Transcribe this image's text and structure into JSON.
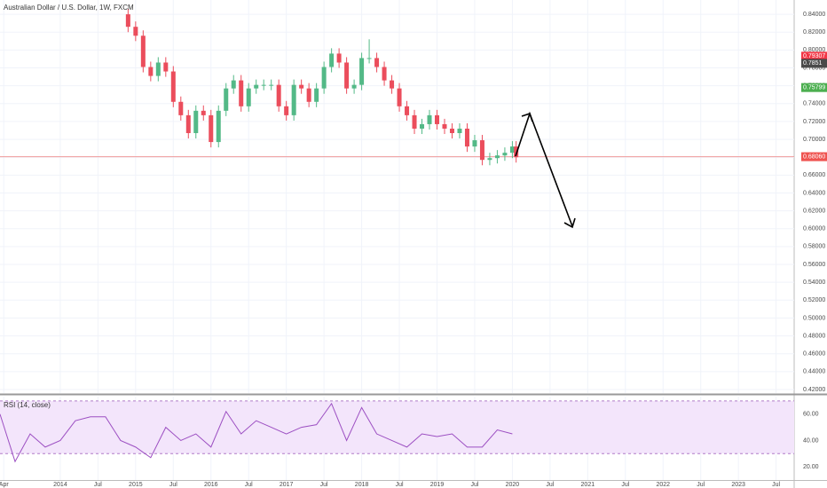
{
  "chart_data": [
    {
      "type": "candlestick",
      "title": "Australian Dollar / U.S. Dollar, 1W, FXCM",
      "x": [
        2014.9,
        2015.0,
        2015.1,
        2015.2,
        2015.3,
        2015.4,
        2015.5,
        2015.6,
        2015.7,
        2015.8,
        2015.9,
        2016.0,
        2016.1,
        2016.2,
        2016.3,
        2016.4,
        2016.5,
        2016.6,
        2016.7,
        2016.8,
        2016.9,
        2017.0,
        2017.1,
        2017.2,
        2017.3,
        2017.4,
        2017.5,
        2017.6,
        2017.7,
        2017.8,
        2017.9,
        2018.0,
        2018.1,
        2018.2,
        2018.3,
        2018.4,
        2018.5,
        2018.6,
        2018.7,
        2018.8,
        2018.9,
        2019.0,
        2019.1,
        2019.2,
        2019.3,
        2019.4,
        2019.5,
        2019.6,
        2019.7,
        2019.8,
        2019.9,
        2020.0,
        2020.05
      ],
      "open": [
        0.84,
        0.826,
        0.816,
        0.781,
        0.771,
        0.786,
        0.776,
        0.742,
        0.727,
        0.707,
        0.732,
        0.727,
        0.697,
        0.732,
        0.757,
        0.766,
        0.737,
        0.757,
        0.761,
        0.761,
        0.761,
        0.737,
        0.727,
        0.761,
        0.757,
        0.742,
        0.757,
        0.781,
        0.796,
        0.786,
        0.757,
        0.761,
        0.791,
        0.791,
        0.781,
        0.766,
        0.757,
        0.737,
        0.727,
        0.712,
        0.717,
        0.727,
        0.717,
        0.712,
        0.707,
        0.712,
        0.692,
        0.699,
        0.677,
        0.679,
        0.682,
        0.685,
        0.692
      ],
      "high": [
        0.846,
        0.832,
        0.822,
        0.787,
        0.792,
        0.792,
        0.782,
        0.748,
        0.733,
        0.738,
        0.738,
        0.733,
        0.738,
        0.763,
        0.772,
        0.772,
        0.763,
        0.767,
        0.767,
        0.767,
        0.767,
        0.743,
        0.767,
        0.767,
        0.763,
        0.763,
        0.787,
        0.802,
        0.802,
        0.792,
        0.767,
        0.797,
        0.812,
        0.797,
        0.787,
        0.772,
        0.763,
        0.743,
        0.733,
        0.723,
        0.733,
        0.733,
        0.723,
        0.718,
        0.718,
        0.718,
        0.705,
        0.705,
        0.685,
        0.688,
        0.691,
        0.698,
        0.698
      ],
      "low": [
        0.82,
        0.81,
        0.775,
        0.765,
        0.765,
        0.77,
        0.736,
        0.721,
        0.701,
        0.701,
        0.721,
        0.691,
        0.691,
        0.726,
        0.751,
        0.731,
        0.731,
        0.751,
        0.755,
        0.755,
        0.731,
        0.721,
        0.721,
        0.751,
        0.736,
        0.736,
        0.751,
        0.775,
        0.78,
        0.751,
        0.751,
        0.755,
        0.785,
        0.775,
        0.76,
        0.751,
        0.731,
        0.721,
        0.706,
        0.706,
        0.711,
        0.711,
        0.706,
        0.701,
        0.701,
        0.686,
        0.686,
        0.671,
        0.671,
        0.673,
        0.676,
        0.679,
        0.674
      ],
      "close": [
        0.826,
        0.816,
        0.781,
        0.771,
        0.786,
        0.776,
        0.742,
        0.727,
        0.707,
        0.732,
        0.727,
        0.697,
        0.732,
        0.757,
        0.766,
        0.737,
        0.757,
        0.761,
        0.761,
        0.761,
        0.737,
        0.727,
        0.761,
        0.757,
        0.742,
        0.757,
        0.781,
        0.796,
        0.786,
        0.757,
        0.761,
        0.791,
        0.791,
        0.781,
        0.766,
        0.757,
        0.737,
        0.727,
        0.712,
        0.717,
        0.727,
        0.717,
        0.712,
        0.707,
        0.712,
        0.692,
        0.699,
        0.677,
        0.679,
        0.682,
        0.685,
        0.692,
        0.68
      ],
      "up_color": "#53b987",
      "down_color": "#eb4d5c",
      "xlim": [
        2013.2,
        2023.74
      ],
      "xticks": [
        {
          "value": 2013.25,
          "label": "Apr"
        },
        2014,
        {
          "value": 2014.5,
          "label": "Jul"
        },
        2015,
        {
          "value": 2015.5,
          "label": "Jul"
        },
        2016,
        {
          "value": 2016.5,
          "label": "Jul"
        },
        2017,
        {
          "value": 2017.5,
          "label": "Jul"
        },
        2018,
        {
          "value": 2018.5,
          "label": "Jul"
        },
        2019,
        {
          "value": 2019.5,
          "label": "Jul"
        },
        2020,
        {
          "value": 2020.5,
          "label": "Jul"
        },
        2021,
        {
          "value": 2021.5,
          "label": "Jul"
        },
        2022,
        {
          "value": 2022.5,
          "label": "Jul"
        },
        2023,
        {
          "value": 2023.5,
          "label": "Jul"
        }
      ],
      "ylim": [
        0.416,
        0.856
      ],
      "yticks": [
        {
          "value": 0.42,
          "label": "0.42000"
        },
        {
          "value": 0.44,
          "label": "0.44000"
        },
        {
          "value": 0.46,
          "label": "0.46000"
        },
        {
          "value": 0.48,
          "label": "0.48000"
        },
        {
          "value": 0.5,
          "label": "0.50000"
        },
        {
          "value": 0.52,
          "label": "0.52000"
        },
        {
          "value": 0.54,
          "label": "0.54000"
        },
        {
          "value": 0.56,
          "label": "0.56000"
        },
        {
          "value": 0.58,
          "label": "0.58000"
        },
        {
          "value": 0.6,
          "label": "0.60000"
        },
        {
          "value": 0.62,
          "label": "0.62000"
        },
        {
          "value": 0.64,
          "label": "0.64000"
        },
        {
          "value": 0.66,
          "label": "0.66000"
        },
        {
          "value": 0.68,
          "label": "0.68000"
        },
        {
          "value": 0.7,
          "label": "0.70000"
        },
        {
          "value": 0.72,
          "label": "0.72000"
        },
        {
          "value": 0.74,
          "label": "0.74000"
        },
        {
          "value": 0.76,
          "label": "0.76000"
        },
        {
          "value": 0.78,
          "label": "0.78000"
        },
        {
          "value": 0.8,
          "label": "0.80000"
        },
        {
          "value": 0.82,
          "label": "0.82000"
        },
        {
          "value": 0.84,
          "label": "0.84000"
        }
      ],
      "price_labels": [
        {
          "value": 0.79307,
          "color": "#f23645"
        },
        {
          "value": 0.7851,
          "color": "#4a4a4a"
        },
        {
          "value": 0.75799,
          "color": "#4caf50"
        },
        {
          "value": 0.6806,
          "label": "0.68060",
          "color": "#ef5350"
        }
      ],
      "hline": 0.6806,
      "hline_color": "#ef9a9a",
      "grid": true
    },
    {
      "type": "line",
      "title": "RSI (14, close)",
      "color": "#9c4fc2",
      "x": [
        2013.2,
        2013.4,
        2013.6,
        2013.8,
        2014.0,
        2014.2,
        2014.4,
        2014.6,
        2014.8,
        2015.0,
        2015.2,
        2015.4,
        2015.6,
        2015.8,
        2016.0,
        2016.2,
        2016.4,
        2016.6,
        2016.8,
        2017.0,
        2017.2,
        2017.4,
        2017.6,
        2017.8,
        2018.0,
        2018.2,
        2018.4,
        2018.6,
        2018.8,
        2019.0,
        2019.2,
        2019.4,
        2019.6,
        2019.8,
        2020.0
      ],
      "values": [
        60,
        24,
        45,
        35,
        40,
        55,
        58,
        58,
        40,
        35,
        27,
        50,
        40,
        45,
        35,
        62,
        45,
        55,
        50,
        45,
        50,
        52,
        68,
        40,
        65,
        45,
        40,
        35,
        45,
        43,
        45,
        35,
        35,
        48,
        45
      ],
      "ylim": [
        10,
        73.3
      ],
      "yticks": [
        {
          "value": 20,
          "label": "20.00"
        },
        {
          "value": 40,
          "label": "40.00"
        },
        {
          "value": 60,
          "label": "60.00"
        }
      ],
      "band": [
        30,
        70
      ],
      "band_color": "#f3e5fb"
    }
  ]
}
